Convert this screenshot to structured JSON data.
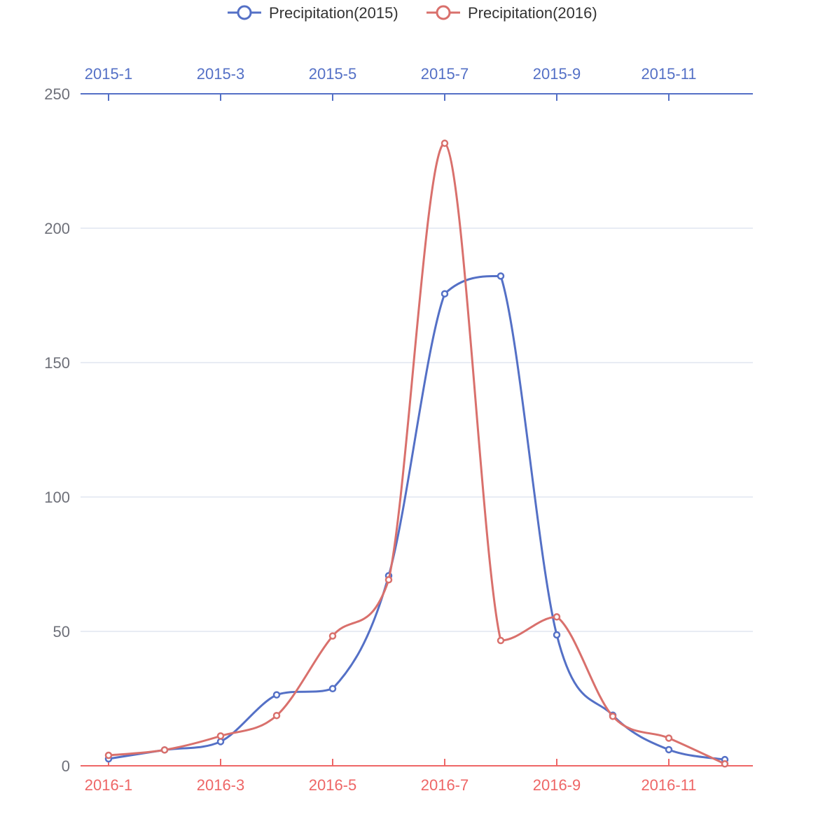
{
  "chart_data": {
    "type": "line",
    "smooth": true,
    "legend": {
      "position": "top-center"
    },
    "x_axis_top": {
      "categories": [
        "2015-1",
        "2015-2",
        "2015-3",
        "2015-4",
        "2015-5",
        "2015-6",
        "2015-7",
        "2015-8",
        "2015-9",
        "2015-10",
        "2015-11",
        "2015-12"
      ],
      "tick_labels_shown": [
        "2015-1",
        "2015-3",
        "2015-5",
        "2015-7",
        "2015-9",
        "2015-11"
      ],
      "color": "#5470c6"
    },
    "x_axis_bottom": {
      "categories": [
        "2016-1",
        "2016-2",
        "2016-3",
        "2016-4",
        "2016-5",
        "2016-6",
        "2016-7",
        "2016-8",
        "2016-9",
        "2016-10",
        "2016-11",
        "2016-12"
      ],
      "tick_labels_shown": [
        "2016-1",
        "2016-3",
        "2016-5",
        "2016-7",
        "2016-9",
        "2016-11"
      ],
      "color": "#ee6666"
    },
    "y_axis": {
      "min": 0,
      "max": 250,
      "ticks": [
        0,
        50,
        100,
        150,
        200,
        250
      ],
      "grid": true
    },
    "series": [
      {
        "name": "Precipitation(2015)",
        "color": "#5470c6",
        "axis": "top",
        "values": [
          2.6,
          5.9,
          9.0,
          26.4,
          28.7,
          70.7,
          175.6,
          182.2,
          48.7,
          18.8,
          6.0,
          2.3
        ]
      },
      {
        "name": "Precipitation(2016)",
        "color": "#d9706c",
        "axis": "bottom",
        "values": [
          3.9,
          5.9,
          11.1,
          18.7,
          48.3,
          69.2,
          231.6,
          46.6,
          55.4,
          18.4,
          10.3,
          0.7
        ]
      }
    ]
  }
}
